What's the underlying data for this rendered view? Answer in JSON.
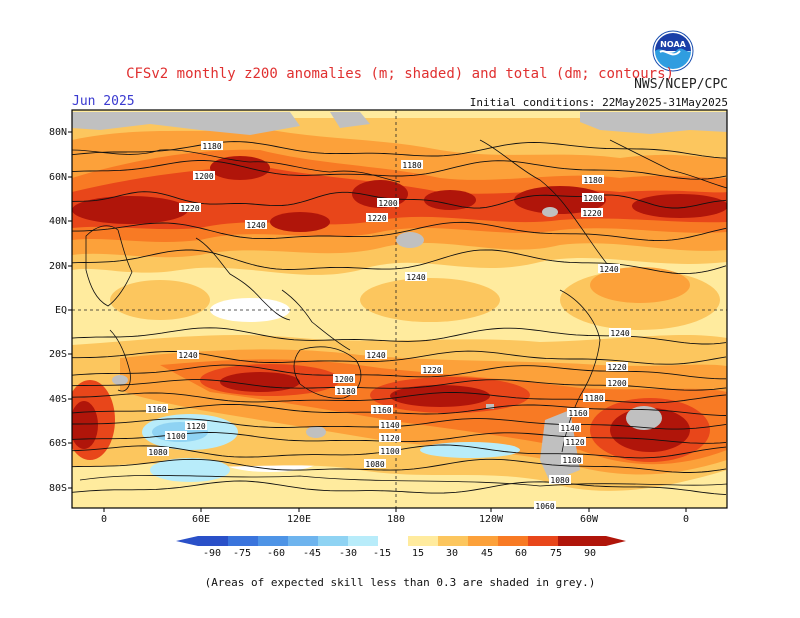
{
  "title": "CFSv2 monthly z200 anomalies (m; shaded) and total (dm; contours)",
  "agency": "NWS/NCEP/CPC",
  "month": "Jun 2025",
  "initial_conditions": "Initial conditions: 22May2025-31May2025",
  "footnote": "(Areas of expected skill less than 0.3 are shaded in grey.)",
  "logo_text": "NOAA",
  "colors": {
    "c15": "#ffeb9e",
    "c30": "#fcc65e",
    "c45": "#fca13a",
    "c60": "#f87a24",
    "c75": "#e8461a",
    "c90": "#b0150a",
    "n15": "#b8ecfa",
    "n30": "#8fd3f3",
    "n45": "#6eb4ee",
    "n60": "#4e94e6",
    "n75": "#3a74dc",
    "n90": "#2a50c8",
    "grey": "#c0c0c0"
  },
  "lat_labels": [
    "80N",
    "60N",
    "40N",
    "20N",
    "EQ",
    "20S",
    "40S",
    "60S",
    "80S"
  ],
  "lon_labels": [
    "0",
    "60E",
    "120E",
    "180",
    "120W",
    "60W",
    "0"
  ],
  "colorbar_ticks": [
    "-90",
    "-75",
    "-60",
    "-45",
    "-30",
    "-15",
    "15",
    "30",
    "45",
    "60",
    "75",
    "90"
  ],
  "contour_labels": [
    "1180",
    "1200",
    "1220",
    "1240",
    "1180",
    "1200",
    "1220",
    "1240",
    "1180",
    "1200",
    "1220",
    "1240",
    "1240",
    "1240",
    "1220",
    "1200",
    "1180",
    "1160",
    "1140",
    "1120",
    "1100",
    "1080",
    "1240",
    "1220",
    "1200",
    "1180",
    "1160",
    "1120",
    "1100",
    "1080",
    "1160",
    "1140",
    "1120",
    "1100",
    "1080",
    "1060"
  ]
}
